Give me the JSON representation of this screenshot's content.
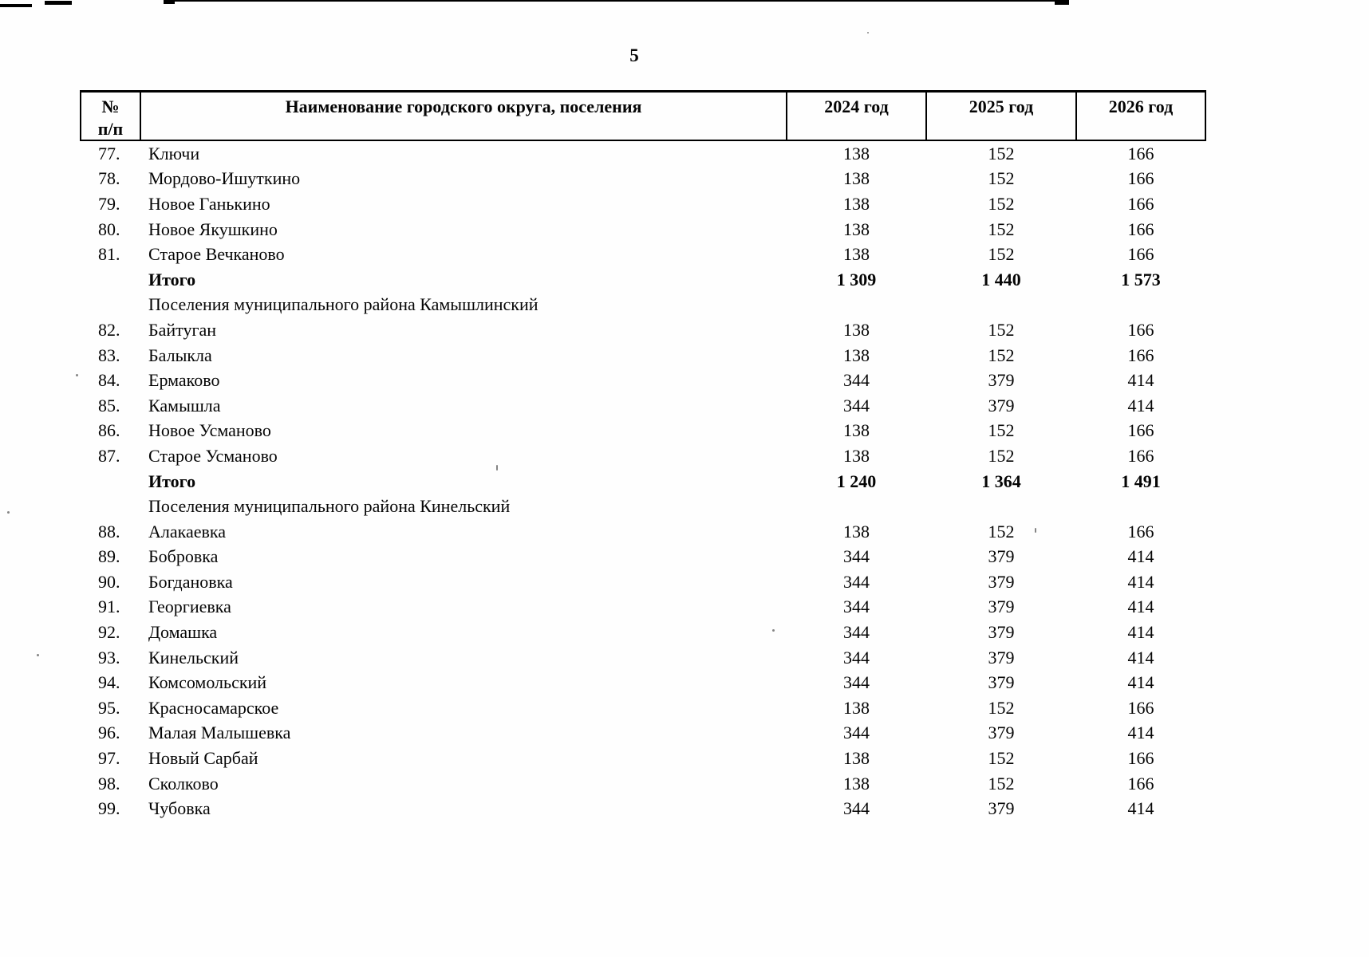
{
  "page": {
    "number": "5"
  },
  "table": {
    "headers": {
      "num_line1": "№",
      "num_line2": "п/п",
      "name": "Наименование городского округа, поселения",
      "y2024": "2024 год",
      "y2025": "2025 год",
      "y2026": "2026 год"
    },
    "rows": [
      {
        "type": "data",
        "num": "77.",
        "name": "Ключи",
        "v2024": "138",
        "v2025": "152",
        "v2026": "166"
      },
      {
        "type": "data",
        "num": "78.",
        "name": "Мордово-Ишуткино",
        "v2024": "138",
        "v2025": "152",
        "v2026": "166"
      },
      {
        "type": "data",
        "num": "79.",
        "name": "Новое Ганькино",
        "v2024": "138",
        "v2025": "152",
        "v2026": "166"
      },
      {
        "type": "data",
        "num": "80.",
        "name": "Новое Якушкино",
        "v2024": "138",
        "v2025": "152",
        "v2026": "166"
      },
      {
        "type": "data",
        "num": "81.",
        "name": "Старое Вечканово",
        "v2024": "138",
        "v2025": "152",
        "v2026": "166"
      },
      {
        "type": "total",
        "num": "",
        "name": "Итого",
        "v2024": "1 309",
        "v2025": "1 440",
        "v2026": "1 573"
      },
      {
        "type": "section",
        "name": "Поселения муниципального района Камышлинский"
      },
      {
        "type": "data",
        "num": "82.",
        "name": "Байтуган",
        "v2024": "138",
        "v2025": "152",
        "v2026": "166"
      },
      {
        "type": "data",
        "num": "83.",
        "name": "Балыкла",
        "v2024": "138",
        "v2025": "152",
        "v2026": "166"
      },
      {
        "type": "data",
        "num": "84.",
        "name": "Ермаково",
        "v2024": "344",
        "v2025": "379",
        "v2026": "414"
      },
      {
        "type": "data",
        "num": "85.",
        "name": "Камышла",
        "v2024": "344",
        "v2025": "379",
        "v2026": "414"
      },
      {
        "type": "data",
        "num": "86.",
        "name": "Новое Усманово",
        "v2024": "138",
        "v2025": "152",
        "v2026": "166"
      },
      {
        "type": "data",
        "num": "87.",
        "name": "Старое Усманово",
        "v2024": "138",
        "v2025": "152",
        "v2026": "166"
      },
      {
        "type": "total",
        "num": "",
        "name": "Итого",
        "v2024": "1 240",
        "v2025": "1 364",
        "v2026": "1 491"
      },
      {
        "type": "section",
        "name": "Поселения муниципального района Кинельский"
      },
      {
        "type": "data",
        "num": "88.",
        "name": "Алакаевка",
        "v2024": "138",
        "v2025": "152",
        "v2026": "166"
      },
      {
        "type": "data",
        "num": "89.",
        "name": "Бобровка",
        "v2024": "344",
        "v2025": "379",
        "v2026": "414"
      },
      {
        "type": "data",
        "num": "90.",
        "name": "Богдановка",
        "v2024": "344",
        "v2025": "379",
        "v2026": "414"
      },
      {
        "type": "data",
        "num": "91.",
        "name": "Георгиевка",
        "v2024": "344",
        "v2025": "379",
        "v2026": "414"
      },
      {
        "type": "data",
        "num": "92.",
        "name": "Домашка",
        "v2024": "344",
        "v2025": "379",
        "v2026": "414"
      },
      {
        "type": "data",
        "num": "93.",
        "name": "Кинельский",
        "v2024": "344",
        "v2025": "379",
        "v2026": "414"
      },
      {
        "type": "data",
        "num": "94.",
        "name": "Комсомольский",
        "v2024": "344",
        "v2025": "379",
        "v2026": "414"
      },
      {
        "type": "data",
        "num": "95.",
        "name": "Красносамарское",
        "v2024": "138",
        "v2025": "152",
        "v2026": "166"
      },
      {
        "type": "data",
        "num": "96.",
        "name": "Малая Малышевка",
        "v2024": "344",
        "v2025": "379",
        "v2026": "414"
      },
      {
        "type": "data",
        "num": "97.",
        "name": "Новый Сарбай",
        "v2024": "138",
        "v2025": "152",
        "v2026": "166"
      },
      {
        "type": "data",
        "num": "98.",
        "name": "Сколково",
        "v2024": "138",
        "v2025": "152",
        "v2026": "166"
      },
      {
        "type": "data",
        "num": "99.",
        "name": "Чубовка",
        "v2024": "344",
        "v2025": "379",
        "v2026": "414"
      }
    ]
  }
}
